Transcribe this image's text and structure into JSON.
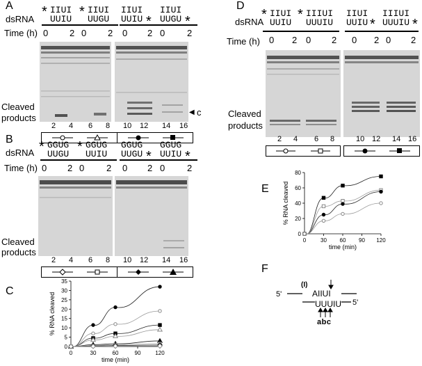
{
  "panels": {
    "A": {
      "letter": "A",
      "dsrna_label": "dsRNA",
      "time_label": "Time (h)",
      "t0": "0",
      "t2": "2",
      "duplexes": [
        {
          "star_left": "*",
          "top": "IIUI",
          "bottom": "UUIU",
          "star_right": ""
        },
        {
          "star_left": "*",
          "top": "IIUI",
          "bottom": "UUGU",
          "star_right": ""
        },
        {
          "star_left": "",
          "top": "IIUI",
          "bottom": "UUIU",
          "star_right": "*"
        },
        {
          "star_left": "",
          "top": "IIUI",
          "bottom": "UUGU",
          "star_right": "*"
        }
      ],
      "cleaved": [
        "Cleaved",
        "products"
      ],
      "arrow_label": "c",
      "lanes": [
        "2",
        "4",
        "6",
        "8",
        "10",
        "12",
        "14",
        "16"
      ],
      "key_symbols": [
        "open-circle",
        "open-triangle",
        "filled-circle",
        "filled-square"
      ]
    },
    "B": {
      "letter": "B",
      "dsrna_label": "dsRNA",
      "time_label": "Time (h)",
      "t0": "0",
      "t2": "2",
      "duplexes": [
        {
          "star_left": "*",
          "top": "GGUG",
          "bottom": "UUGU",
          "star_right": ""
        },
        {
          "star_left": "*",
          "top": "GGUG",
          "bottom": "UUIU",
          "star_right": ""
        },
        {
          "star_left": "",
          "top": "GGUG",
          "bottom": "UUGU",
          "star_right": "*"
        },
        {
          "star_left": "",
          "top": "GGUG",
          "bottom": "UUIU",
          "star_right": "*"
        }
      ],
      "cleaved": [
        "Cleaved",
        "products"
      ],
      "lanes": [
        "2",
        "4",
        "6",
        "8",
        "10",
        "12",
        "14",
        "16"
      ],
      "key_symbols": [
        "open-diamond",
        "open-square",
        "filled-diamond",
        "filled-triangle"
      ]
    },
    "C": {
      "letter": "C",
      "ylabel": "% RNA cleaved",
      "xlabel": "time (min)"
    },
    "D": {
      "letter": "D",
      "dsrna_label": "dsRNA",
      "time_label": "Time (h)",
      "t0": "0",
      "t2": "2",
      "duplexes": [
        {
          "star_left": "*",
          "top": "IIUI",
          "bottom": "UUIU",
          "star_right": ""
        },
        {
          "star_left": "*",
          "top": "IIIUI",
          "bottom": "UUUIU",
          "star_right": ""
        },
        {
          "star_left": "",
          "top": "IIUI",
          "bottom": "UUIU",
          "star_right": "*"
        },
        {
          "star_left": "",
          "top": "IIIUI",
          "bottom": "UUUIU",
          "star_right": "*"
        }
      ],
      "cleaved": [
        "Cleaved",
        "products"
      ],
      "lanes": [
        "2",
        "4",
        "6",
        "8",
        "10",
        "12",
        "14",
        "16"
      ],
      "key_symbols": [
        "open-circle",
        "open-square",
        "filled-circle",
        "filled-square"
      ]
    },
    "E": {
      "letter": "E",
      "ylabel": "% RNA cleaved",
      "xlabel": "time (min)"
    },
    "F": {
      "letter": "F",
      "five_prime": "5'",
      "inosine": "(I)",
      "top_seq": "AIIUI",
      "bottom_seq": "UUUIU",
      "sites": "abc"
    }
  },
  "chart_data": [
    {
      "type": "line",
      "panel": "C",
      "xlabel": "time (min)",
      "ylabel": "% RNA cleaved",
      "xlim": [
        0,
        120
      ],
      "ylim": [
        0,
        35
      ],
      "xticks": [
        0,
        30,
        60,
        90,
        120
      ],
      "yticks": [
        0,
        5,
        10,
        15,
        20,
        25,
        30,
        35
      ],
      "x": [
        0,
        30,
        60,
        120
      ],
      "series": [
        {
          "marker": "filled-circle",
          "values": [
            0,
            11.5,
            21,
            32
          ]
        },
        {
          "marker": "open-circle",
          "values": [
            0,
            7,
            12,
            19
          ]
        },
        {
          "marker": "filled-square",
          "values": [
            0,
            4.5,
            7,
            11.5
          ]
        },
        {
          "marker": "open-triangle",
          "values": [
            0,
            3.5,
            5.5,
            9
          ]
        },
        {
          "marker": "filled-triangle",
          "values": [
            0,
            1,
            1.5,
            3
          ]
        },
        {
          "marker": "open-square",
          "values": [
            0,
            0.5,
            1,
            1.5
          ]
        },
        {
          "marker": "filled-diamond",
          "values": [
            0,
            0.3,
            0.5,
            0.8
          ]
        },
        {
          "marker": "open-diamond",
          "values": [
            0,
            0.1,
            0.2,
            0.3
          ]
        }
      ]
    },
    {
      "type": "line",
      "panel": "E",
      "xlabel": "time (min)",
      "ylabel": "% RNA cleaved",
      "xlim": [
        0,
        120
      ],
      "ylim": [
        0,
        80
      ],
      "xticks": [
        0,
        30,
        60,
        90,
        120
      ],
      "yticks": [
        0,
        20,
        40,
        60,
        80
      ],
      "x": [
        0,
        30,
        60,
        120
      ],
      "series": [
        {
          "marker": "filled-square",
          "values": [
            0,
            47,
            63,
            75
          ]
        },
        {
          "marker": "open-square",
          "values": [
            0,
            36,
            43,
            57
          ]
        },
        {
          "marker": "filled-circle",
          "values": [
            0,
            25,
            39,
            55
          ]
        },
        {
          "marker": "open-circle",
          "values": [
            0,
            17,
            26,
            40
          ]
        }
      ]
    }
  ]
}
